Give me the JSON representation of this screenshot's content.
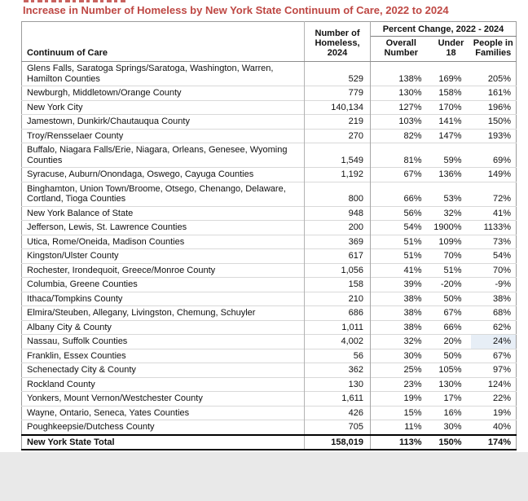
{
  "title": {
    "text": "Increase in Number of Homeless by New York State Continuum of Care, 2022 to 2024",
    "color": "#be4743"
  },
  "table": {
    "header": {
      "continuum": "Continuum of Care",
      "number_homeless": "Number of\nHomeless,\n2024",
      "percent_group": "Percent Change, 2022 - 2024",
      "sub_columns": [
        "Overall\nNumber",
        "Under\n18",
        "People in\nFamilies"
      ]
    },
    "rows": [
      {
        "coc": "Glens Falls, Saratoga Springs/Saratoga, Washington, Warren, Hamilton Counties",
        "homeless_2024": "529",
        "overall": "138%",
        "under_18": "169%",
        "families": "205%"
      },
      {
        "coc": "Newburgh, Middletown/Orange County",
        "homeless_2024": "779",
        "overall": "130%",
        "under_18": "158%",
        "families": "161%"
      },
      {
        "coc": "New York City",
        "homeless_2024": "140,134",
        "overall": "127%",
        "under_18": "170%",
        "families": "196%"
      },
      {
        "coc": "Jamestown, Dunkirk/Chautauqua County",
        "homeless_2024": "219",
        "overall": "103%",
        "under_18": "141%",
        "families": "150%"
      },
      {
        "coc": "Troy/Rensselaer County",
        "homeless_2024": "270",
        "overall": "82%",
        "under_18": "147%",
        "families": "193%"
      },
      {
        "coc": "Buffalo, Niagara Falls/Erie, Niagara, Orleans, Genesee, Wyoming Counties",
        "homeless_2024": "1,549",
        "overall": "81%",
        "under_18": "59%",
        "families": "69%"
      },
      {
        "coc": "Syracuse, Auburn/Onondaga, Oswego, Cayuga Counties",
        "homeless_2024": "1,192",
        "overall": "67%",
        "under_18": "136%",
        "families": "149%"
      },
      {
        "coc": "Binghamton, Union Town/Broome, Otsego, Chenango, Delaware, Cortland, Tioga Counties",
        "homeless_2024": "800",
        "overall": "66%",
        "under_18": "53%",
        "families": "72%"
      },
      {
        "coc": "New York Balance of State",
        "homeless_2024": "948",
        "overall": "56%",
        "under_18": "32%",
        "families": "41%"
      },
      {
        "coc": "Jefferson, Lewis, St. Lawrence Counties",
        "homeless_2024": "200",
        "overall": "54%",
        "under_18": "1900%",
        "families": "1133%"
      },
      {
        "coc": "Utica, Rome/Oneida, Madison Counties",
        "homeless_2024": "369",
        "overall": "51%",
        "under_18": "109%",
        "families": "73%"
      },
      {
        "coc": "Kingston/Ulster County",
        "homeless_2024": "617",
        "overall": "51%",
        "under_18": "70%",
        "families": "54%"
      },
      {
        "coc": "Rochester, Irondequoit, Greece/Monroe County",
        "homeless_2024": "1,056",
        "overall": "41%",
        "under_18": "51%",
        "families": "70%"
      },
      {
        "coc": "Columbia, Greene Counties",
        "homeless_2024": "158",
        "overall": "39%",
        "under_18": "-20%",
        "families": "-9%"
      },
      {
        "coc": "Ithaca/Tompkins County",
        "homeless_2024": "210",
        "overall": "38%",
        "under_18": "50%",
        "families": "38%"
      },
      {
        "coc": "Elmira/Steuben, Allegany, Livingston, Chemung, Schuyler",
        "homeless_2024": "686",
        "overall": "38%",
        "under_18": "67%",
        "families": "68%"
      },
      {
        "coc": "Albany City & County",
        "homeless_2024": "1,011",
        "overall": "38%",
        "under_18": "66%",
        "families": "62%"
      },
      {
        "coc": "Nassau, Suffolk Counties",
        "homeless_2024": "4,002",
        "overall": "32%",
        "under_18": "20%",
        "families": "24%",
        "highlighted": true
      },
      {
        "coc": "Franklin, Essex Counties",
        "homeless_2024": "56",
        "overall": "30%",
        "under_18": "50%",
        "families": "67%"
      },
      {
        "coc": "Schenectady City & County",
        "homeless_2024": "362",
        "overall": "25%",
        "under_18": "105%",
        "families": "97%"
      },
      {
        "coc": "Rockland County",
        "homeless_2024": "130",
        "overall": "23%",
        "under_18": "130%",
        "families": "124%"
      },
      {
        "coc": "Yonkers, Mount Vernon/Westchester County",
        "homeless_2024": "1,611",
        "overall": "19%",
        "under_18": "17%",
        "families": "22%"
      },
      {
        "coc": "Wayne, Ontario, Seneca, Yates Counties",
        "homeless_2024": "426",
        "overall": "15%",
        "under_18": "16%",
        "families": "19%"
      },
      {
        "coc": "Poughkeepsie/Dutchess County",
        "homeless_2024": "705",
        "overall": "11%",
        "under_18": "30%",
        "families": "40%"
      }
    ],
    "total": {
      "coc": "New York State Total",
      "homeless_2024": "158,019",
      "overall": "113%",
      "under_18": "150%",
      "families": "174%"
    }
  }
}
